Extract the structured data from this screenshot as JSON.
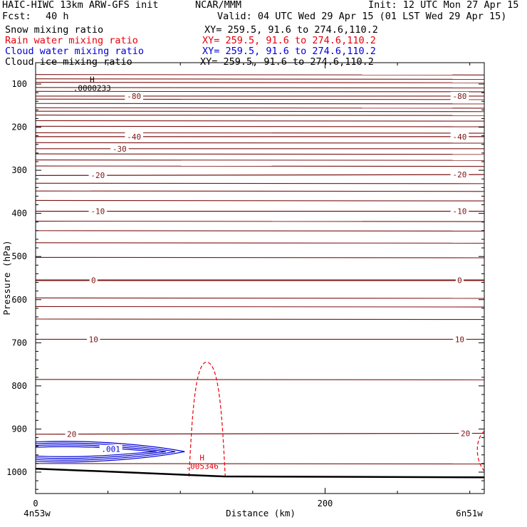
{
  "header": {
    "model": "HAIC-HIWC 13km ARW-GFS init",
    "org": "NCAR/MMM",
    "init": "Init: 12 UTC Mon 27 Apr 15",
    "fcst_label": "Fcst:",
    "fcst_value": "40 h",
    "valid": "Valid: 04 UTC Wed 29 Apr 15 (01 LST Wed 29 Apr 15)"
  },
  "legend": [
    {
      "label": "Snow mixing ratio",
      "xy": "XY= 259.5, 91.6 to 274.6,110.2",
      "color": "#000000"
    },
    {
      "label": "Rain water mixing ratio",
      "xy": "XY= 259.5, 91.6 to 274.6,110.2",
      "color": "#e8000b"
    },
    {
      "label": "Cloud water mixing ratio",
      "xy": "XY= 259.5, 91.6 to 274.6,110.2",
      "color": "#0000d8"
    },
    {
      "label": "Cloud ice mixing ratio",
      "xy": "XY= 259.5, 91.6 to 274.6,110.2",
      "color": "#000000"
    }
  ],
  "chart_data": {
    "type": "cross-section contour",
    "xlabel": "Distance (km)",
    "ylabel": "Pressure (hPa)",
    "xlim": [
      0,
      310
    ],
    "ylim": [
      1050,
      70
    ],
    "x_ticks": [
      0,
      200
    ],
    "y_ticks": [
      100,
      200,
      300,
      400,
      500,
      600,
      700,
      800,
      900,
      1000
    ],
    "x_endpoints": {
      "left": "4n53w",
      "right": "6n51w"
    },
    "colors": {
      "temperature": "#7b1414",
      "terrain": "#000000",
      "rain": "#e8000b",
      "cloud_water": "#0000d8",
      "snow": "#000000"
    },
    "temperature_isotherms": [
      {
        "value": -80,
        "label": "-80",
        "left_p": 128,
        "right_p": 128,
        "label_x": [
          68,
          293
        ]
      },
      {
        "value": -40,
        "label": "-40",
        "left_p": 222,
        "right_p": 222,
        "label_x": [
          68,
          293
        ]
      },
      {
        "value": -30,
        "label": "-30",
        "left_p": 250,
        "right_p": 250,
        "label_x": [
          58
        ]
      },
      {
        "value": -20,
        "label": "-20",
        "left_p": 312,
        "right_p": 310,
        "label_x": [
          43,
          293
        ]
      },
      {
        "value": -10,
        "label": "-10",
        "left_p": 395,
        "right_p": 395,
        "label_x": [
          43,
          293
        ]
      },
      {
        "value": 0,
        "label": "0",
        "left_p": 555,
        "right_p": 555,
        "label_x": [
          40,
          293
        ]
      },
      {
        "value": 10,
        "label": "10",
        "left_p": 692,
        "right_p": 692,
        "label_x": [
          40,
          293
        ]
      },
      {
        "value": 20,
        "label": "20",
        "left_p": 912,
        "right_p": 910,
        "label_x": [
          25,
          297
        ]
      }
    ],
    "extra_isotherm_levels_hpa": [
      78,
      88,
      96,
      108,
      117,
      135,
      145,
      155,
      163,
      172,
      185,
      198,
      213,
      236,
      262,
      276,
      290,
      330,
      348,
      370,
      418,
      440,
      468,
      502,
      596,
      616,
      645,
      785,
      980
    ],
    "maxima": [
      {
        "field": "snow",
        "mark": "H",
        "value": ".0000233",
        "x_km": 39,
        "p_hpa": 106
      },
      {
        "field": "rain",
        "mark": "H",
        "value": ".005346",
        "x_km": 115,
        "p_hpa": 983
      }
    ],
    "cloud_water": {
      "contour_label": ".001",
      "x_range_km": [
        0,
        103
      ],
      "p_range_hpa": [
        930,
        975
      ]
    },
    "rain_contour": {
      "x_range_km": [
        106,
        131
      ],
      "top_p_hpa": 745
    },
    "terrain_p_hpa": [
      {
        "x": 0,
        "p": 992
      },
      {
        "x": 60,
        "p": 1000
      },
      {
        "x": 130,
        "p": 1010
      },
      {
        "x": 310,
        "p": 1012
      }
    ]
  }
}
